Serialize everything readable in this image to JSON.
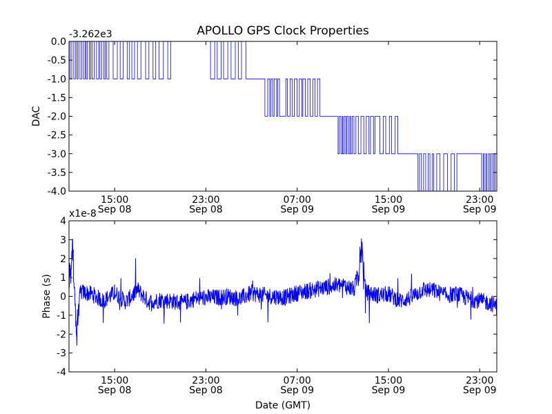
{
  "figure": {
    "title": "APOLLO GPS Clock Properties",
    "xlabel": "Date (GMT)"
  },
  "chart_data": [
    {
      "type": "line",
      "ylabel": "DAC",
      "offset_label": "-3.262e3",
      "ylim": [
        -4.0,
        0.0
      ],
      "xlim": [
        "Sep 08 11:00",
        "Sep 10 00:30"
      ],
      "yticks": [
        {
          "value": 0.0,
          "label": "0.0"
        },
        {
          "value": -0.5,
          "label": "-0.5"
        },
        {
          "value": -1.0,
          "label": "-1.0"
        },
        {
          "value": -1.5,
          "label": "-1.5"
        },
        {
          "value": -2.0,
          "label": "-2.0"
        },
        {
          "value": -2.5,
          "label": "-2.5"
        },
        {
          "value": -3.0,
          "label": "-3.0"
        },
        {
          "value": -3.5,
          "label": "-3.5"
        },
        {
          "value": -4.0,
          "label": "-4.0"
        }
      ],
      "xticks": [
        {
          "time": "Sep 08 15:00",
          "label1": "15:00",
          "label2": "Sep 08"
        },
        {
          "time": "Sep 08 23:00",
          "label1": "23:00",
          "label2": "Sep 08"
        },
        {
          "time": "Sep 09 07:00",
          "label1": "07:00",
          "label2": "Sep 09"
        },
        {
          "time": "Sep 09 15:00",
          "label1": "15:00",
          "label2": "Sep 09"
        },
        {
          "time": "Sep 09 23:00",
          "label1": "23:00",
          "label2": "Sep 09"
        }
      ],
      "color": "#0000ff",
      "series": [
        {
          "x": [
            "Sep 08 11:00",
            "Sep 08 12:30",
            "Sep 08 14:30",
            "Sep 08 17:00",
            "Sep 08 20:00",
            "Sep 08 23:00",
            "Sep 09 02:30",
            "Sep 09 04:00",
            "Sep 09 05:50",
            "Sep 09 07:30",
            "Sep 09 09:00",
            "Sep 09 10:30",
            "Sep 09 12:00",
            "Sep 09 14:00",
            "Sep 09 16:00",
            "Sep 09 17:30",
            "Sep 09 19:00",
            "Sep 09 21:00",
            "Sep 09 23:00",
            "Sep 10 00:30"
          ],
          "y": [
            0.0,
            -1.0,
            0.0,
            -1.0,
            0.0,
            0.0,
            -1.0,
            -1.0,
            -2.0,
            -1.0,
            -2.0,
            -2.0,
            -3.0,
            -2.0,
            -3.0,
            -3.0,
            -4.0,
            -3.0,
            -3.0,
            -4.0
          ]
        }
      ]
    },
    {
      "type": "line",
      "ylabel": "Phase (s)",
      "offset_label": "x1e-8",
      "ylim": [
        -4,
        4
      ],
      "xlim": [
        "Sep 08 11:00",
        "Sep 10 00:30"
      ],
      "yticks": [
        {
          "value": 4,
          "label": "4"
        },
        {
          "value": 3,
          "label": "3"
        },
        {
          "value": 2,
          "label": "2"
        },
        {
          "value": 1,
          "label": "1"
        },
        {
          "value": 0,
          "label": "0"
        },
        {
          "value": -1,
          "label": "-1"
        },
        {
          "value": -2,
          "label": "-2"
        },
        {
          "value": -3,
          "label": "-3"
        },
        {
          "value": -4,
          "label": "-4"
        }
      ],
      "xticks": [
        {
          "time": "Sep 08 15:00",
          "label1": "15:00",
          "label2": "Sep 08"
        },
        {
          "time": "Sep 08 23:00",
          "label1": "23:00",
          "label2": "Sep 08"
        },
        {
          "time": "Sep 09 07:00",
          "label1": "07:00",
          "label2": "Sep 09"
        },
        {
          "time": "Sep 09 15:00",
          "label1": "15:00",
          "label2": "Sep 09"
        },
        {
          "time": "Sep 09 23:00",
          "label1": "23:00",
          "label2": "Sep 09"
        }
      ],
      "color": "#0000ff",
      "series": [
        {
          "x": [
            "Sep 08 11:00",
            "Sep 08 11:20",
            "Sep 08 11:40",
            "Sep 08 12:00",
            "Sep 08 13:00",
            "Sep 08 14:00",
            "Sep 08 15:00",
            "Sep 08 16:00",
            "Sep 08 17:00",
            "Sep 08 18:00",
            "Sep 08 19:00",
            "Sep 08 20:00",
            "Sep 08 21:00",
            "Sep 08 22:00",
            "Sep 08 23:00",
            "Sep 09 00:00",
            "Sep 09 01:00",
            "Sep 09 02:00",
            "Sep 09 03:00",
            "Sep 09 04:00",
            "Sep 09 05:00",
            "Sep 09 06:00",
            "Sep 09 07:00",
            "Sep 09 08:00",
            "Sep 09 09:00",
            "Sep 09 10:00",
            "Sep 09 11:00",
            "Sep 09 12:00",
            "Sep 09 12:40",
            "Sep 09 13:00",
            "Sep 09 14:00",
            "Sep 09 15:00",
            "Sep 09 16:00",
            "Sep 09 17:00",
            "Sep 09 18:00",
            "Sep 09 19:00",
            "Sep 09 20:00",
            "Sep 09 21:00",
            "Sep 09 22:00",
            "Sep 09 23:00",
            "Sep 10 00:00",
            "Sep 10 00:30"
          ],
          "y": [
            1.2,
            3.3,
            -3.0,
            0.4,
            0.2,
            -0.4,
            0.3,
            -0.5,
            0.6,
            -0.5,
            -0.3,
            -0.4,
            -0.6,
            -0.2,
            -0.1,
            -0.1,
            0.0,
            -0.2,
            0.3,
            0.1,
            0.0,
            -0.1,
            0.3,
            0.5,
            0.7,
            0.9,
            1.0,
            0.6,
            3.3,
            0.4,
            0.1,
            0.2,
            -0.4,
            -0.1,
            0.6,
            0.5,
            0.1,
            0.2,
            -0.2,
            -0.4,
            -0.6,
            -0.9
          ]
        }
      ]
    }
  ]
}
